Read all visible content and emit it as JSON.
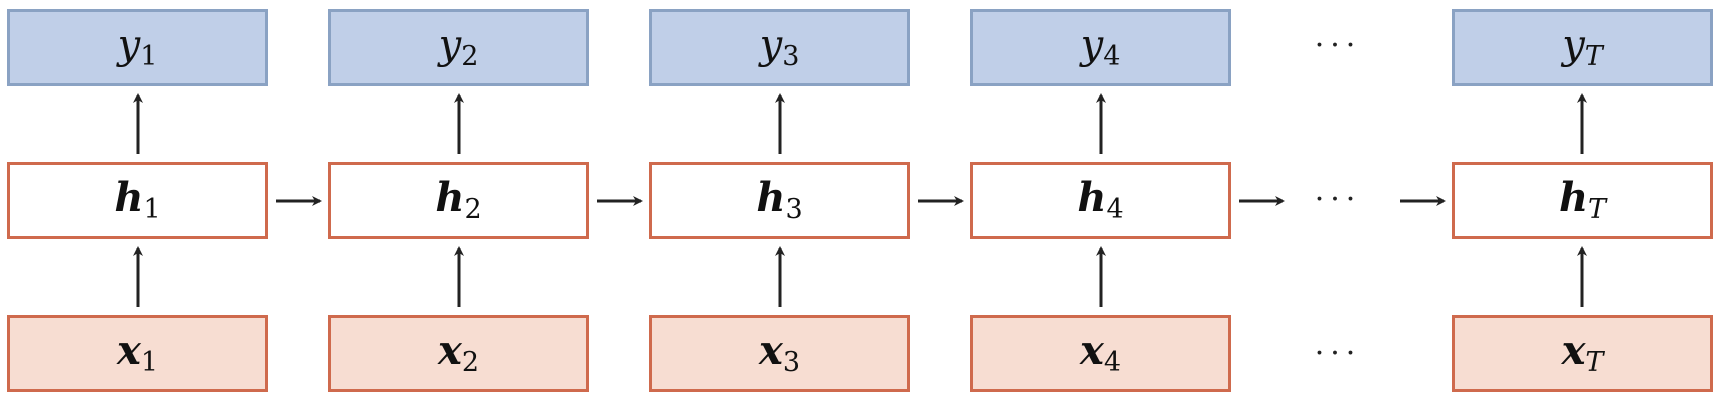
{
  "columns": [
    {
      "output": {
        "var": "y",
        "sub": "1"
      },
      "hidden": {
        "var": "h",
        "sub": "1"
      },
      "input": {
        "var": "x",
        "sub": "1"
      }
    },
    {
      "output": {
        "var": "y",
        "sub": "2"
      },
      "hidden": {
        "var": "h",
        "sub": "2"
      },
      "input": {
        "var": "x",
        "sub": "2"
      }
    },
    {
      "output": {
        "var": "y",
        "sub": "3"
      },
      "hidden": {
        "var": "h",
        "sub": "3"
      },
      "input": {
        "var": "x",
        "sub": "3"
      }
    },
    {
      "output": {
        "var": "y",
        "sub": "4"
      },
      "hidden": {
        "var": "h",
        "sub": "4"
      },
      "input": {
        "var": "x",
        "sub": "4"
      }
    },
    {
      "output": {
        "var": "y",
        "sub": "T"
      },
      "hidden": {
        "var": "h",
        "sub": "T"
      },
      "input": {
        "var": "x",
        "sub": "T"
      }
    }
  ],
  "ellipsis": "···",
  "colors": {
    "output_fill": "#c0cfe8",
    "output_border": "#8aa2c3",
    "hidden_fill": "#ffffff",
    "hidden_border": "#cf6a4d",
    "input_fill": "#f7ddd2",
    "input_border": "#cf6a4d",
    "arrow": "#222222"
  }
}
